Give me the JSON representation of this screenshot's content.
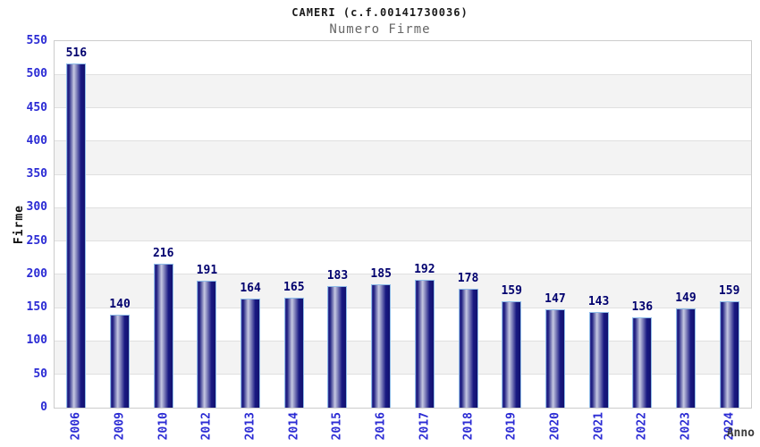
{
  "chart_data": {
    "type": "bar",
    "title": "CAMERI (c.f.00141730036)",
    "subtitle": "Numero Firme",
    "xlabel": "Anno",
    "ylabel": "Firme",
    "categories": [
      "2006",
      "2009",
      "2010",
      "2012",
      "2013",
      "2014",
      "2015",
      "2016",
      "2017",
      "2018",
      "2019",
      "2020",
      "2021",
      "2022",
      "2023",
      "2024"
    ],
    "values": [
      516,
      140,
      216,
      191,
      164,
      165,
      183,
      185,
      192,
      178,
      159,
      147,
      143,
      136,
      149,
      159
    ],
    "ylim": [
      0,
      550
    ],
    "ytick_step": 50,
    "yticks": [
      0,
      50,
      100,
      150,
      200,
      250,
      300,
      350,
      400,
      450,
      500,
      550
    ],
    "grid": true,
    "legend": "none",
    "plot_background": "alternating horizontal bands white/gray",
    "colors": {
      "bar_dark": "#17177c",
      "bar_light": "#c6c9e2",
      "bar_border": "#8fbce8",
      "value_label": "#00006e",
      "tick_label": "#2b2bd4",
      "grid_line": "#e0e0e0",
      "band_fill": "#f3f3f3",
      "plot_border": "#cccccc",
      "title_color": "#1a1a1a",
      "subtitle_color": "#666666",
      "axis_title_color": "#3a3a3a"
    }
  }
}
